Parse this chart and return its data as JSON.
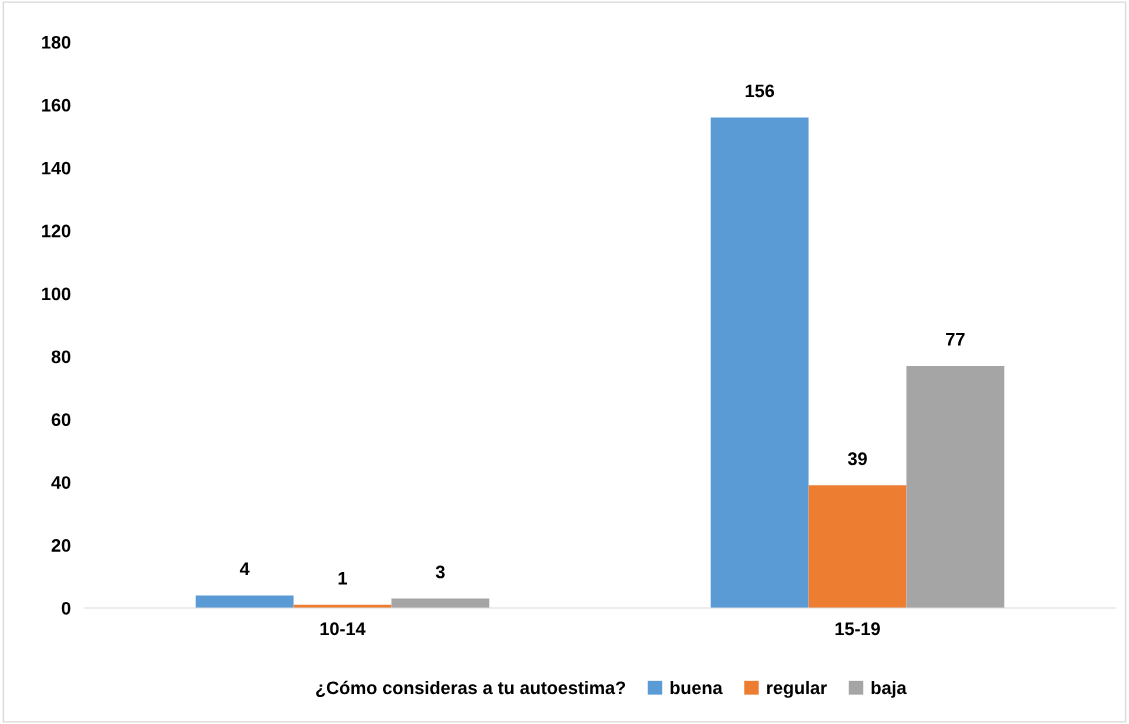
{
  "chart_data": {
    "type": "bar",
    "categories": [
      "10-14",
      "15-19"
    ],
    "series": [
      {
        "name": "buena",
        "color": "#5b9bd5",
        "values": [
          4,
          156
        ]
      },
      {
        "name": "regular",
        "color": "#ed7d31",
        "values": [
          1,
          39
        ]
      },
      {
        "name": "baja",
        "color": "#a5a5a5",
        "values": [
          3,
          77
        ]
      }
    ],
    "legend_title": "¿Cómo consideras a tu autoestima?",
    "legend": "bottom",
    "ylim": [
      0,
      180
    ],
    "yticks": [
      0,
      20,
      40,
      60,
      80,
      100,
      120,
      140,
      160,
      180
    ],
    "grid": false,
    "data_labels": true
  }
}
